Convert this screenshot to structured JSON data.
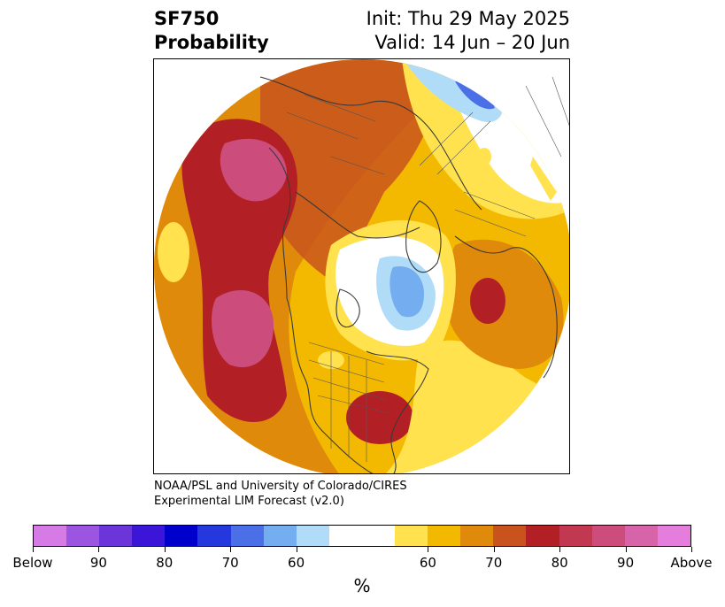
{
  "header": {
    "variable": "SF750",
    "product": "Probability",
    "init": "Init: Thu 29 May 2025",
    "valid": "Valid: 14 Jun – 20 Jun"
  },
  "credit": {
    "line1": "NOAA/PSL and University of Colorado/CIRES",
    "line2": "Experimental LIM Forecast (v2.0)"
  },
  "colorbar": {
    "units": "%",
    "colors": [
      "#d67be6",
      "#9c55e0",
      "#6b35d9",
      "#3b16d8",
      "#0000cc",
      "#2538dd",
      "#4b6fe6",
      "#74aef0",
      "#b0dcf8",
      "#ffffff",
      "#ffffff",
      "#ffe24d",
      "#f3b800",
      "#e08a0c",
      "#c8531c",
      "#b22026",
      "#c23850",
      "#cc4d7c",
      "#d763a9",
      "#e57ddc"
    ],
    "tick_labels": [
      "Below",
      "90",
      "80",
      "70",
      "60",
      "60",
      "70",
      "80",
      "90",
      "Above"
    ]
  }
}
